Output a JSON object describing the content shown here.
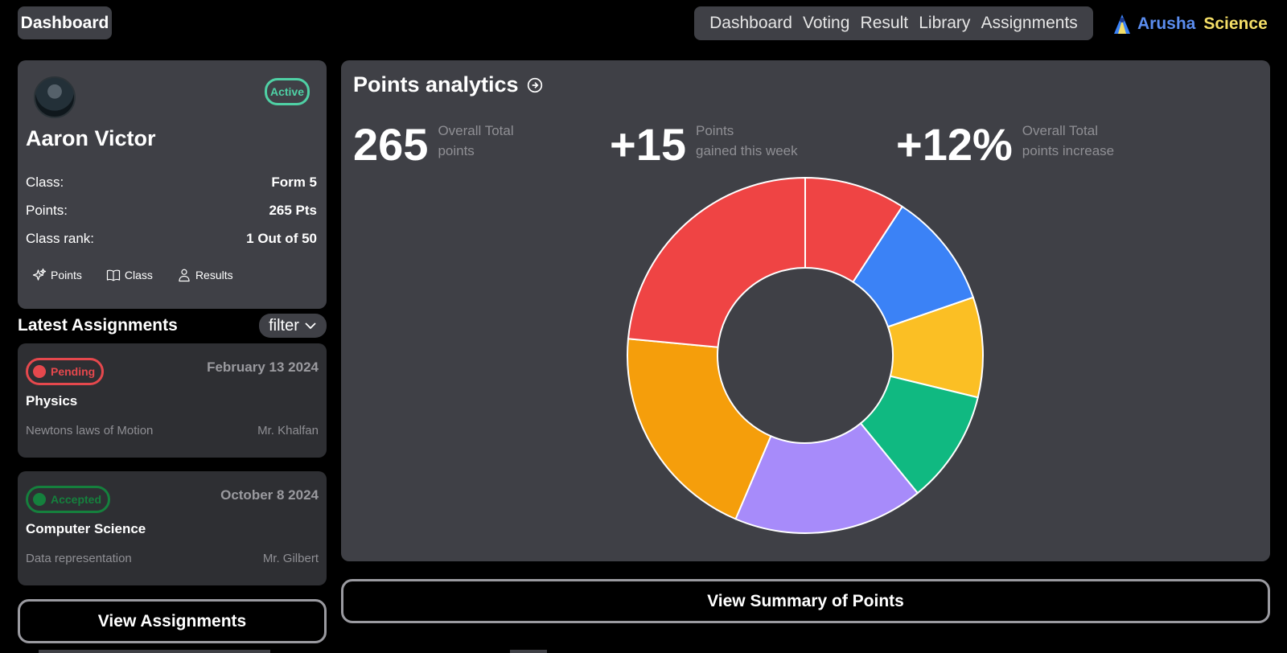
{
  "header": {
    "dashboard_label": "Dashboard",
    "nav": [
      "Dashboard",
      "Voting",
      "Result",
      "Library",
      "Assignments"
    ],
    "brand_first": "Arusha",
    "brand_second": "Science"
  },
  "profile": {
    "status": "Active",
    "name": "Aaron Victor",
    "rows": [
      {
        "label": "Class:",
        "value": "Form 5"
      },
      {
        "label": "Points:",
        "value": "265 Pts"
      },
      {
        "label": "Class rank:",
        "value": "1 Out of 50"
      }
    ],
    "links": [
      {
        "label": "Points",
        "icon": "sparkles-icon"
      },
      {
        "label": "Class",
        "icon": "book-open-icon"
      },
      {
        "label": "Results",
        "icon": "user-icon"
      }
    ]
  },
  "assignments": {
    "title": "Latest Assignments",
    "filter_label": "filter",
    "items": [
      {
        "status": "Pending",
        "date": "February 13 2024",
        "subject": "Physics",
        "topic": "Newtons laws of Motion",
        "teacher": "Mr. Khalfan"
      },
      {
        "status": "Accepted",
        "date": "October 8 2024",
        "subject": "Computer Science",
        "topic": "Data representation",
        "teacher": "Mr. Gilbert"
      }
    ],
    "view_button": "View Assignments"
  },
  "analytics": {
    "title": "Points analytics",
    "stats": [
      {
        "value": "265",
        "caption1": "Overall Total",
        "caption2": "points"
      },
      {
        "value": "+15",
        "caption1": "Points",
        "caption2": "gained this week"
      },
      {
        "value": "+12%",
        "caption1": "Overall Total",
        "caption2": "points increase"
      }
    ],
    "summary_button": "View Summary of Points"
  },
  "chart_data": {
    "type": "pie",
    "values": [
      9.2,
      10.5,
      9.1,
      10.3,
      17.3,
      20.1,
      23.5
    ],
    "colors": [
      "#ef4444",
      "#3b82f6",
      "#fbbf24",
      "#10b981",
      "#a78bfa",
      "#f59e0b",
      "#ef4444"
    ]
  },
  "colors": {
    "panel": "#3f4046",
    "card": "#2e2f33",
    "active": "#4fd1a5",
    "pending": "#e5484d",
    "accepted": "#15803d"
  }
}
